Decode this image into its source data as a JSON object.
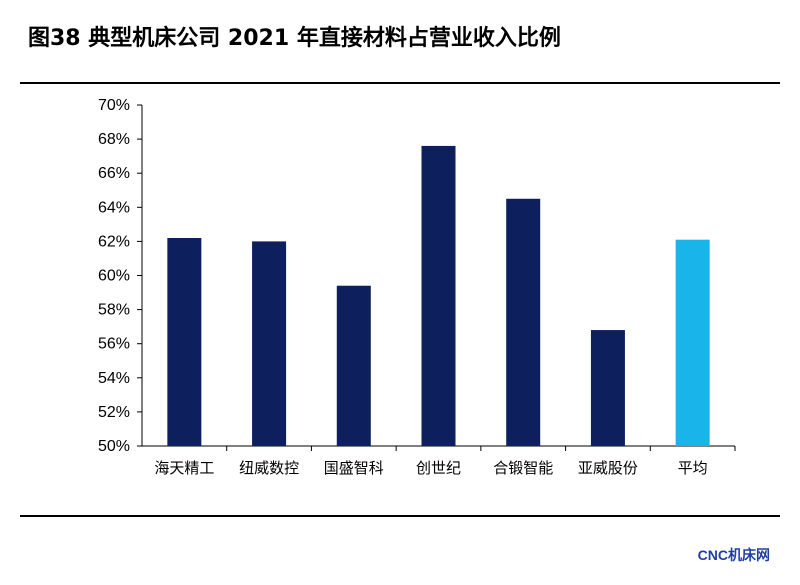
{
  "header": {
    "title": "图38 典型机床公司 2021 年直接材料占营业收入比例"
  },
  "watermark": {
    "text": "CNC机床网"
  },
  "colors": {
    "bar": "#0d1f5c",
    "highlight": "#19b4ea",
    "axis": "#000000"
  },
  "chart_data": {
    "type": "bar",
    "title": "图38 典型机床公司 2021 年直接材料占营业收入比例",
    "xlabel": "",
    "ylabel": "",
    "categories": [
      "海天精工",
      "纽威数控",
      "国盛智科",
      "创世纪",
      "合锻智能",
      "亚威股份",
      "平均"
    ],
    "values": [
      62.2,
      62.0,
      59.4,
      67.6,
      64.5,
      56.8,
      62.1
    ],
    "highlight_index": 6,
    "ylim": [
      50,
      70
    ],
    "yticks": [
      "50%",
      "52%",
      "54%",
      "56%",
      "58%",
      "60%",
      "62%",
      "64%",
      "66%",
      "68%",
      "70%"
    ],
    "grid": false,
    "legend": "none"
  }
}
